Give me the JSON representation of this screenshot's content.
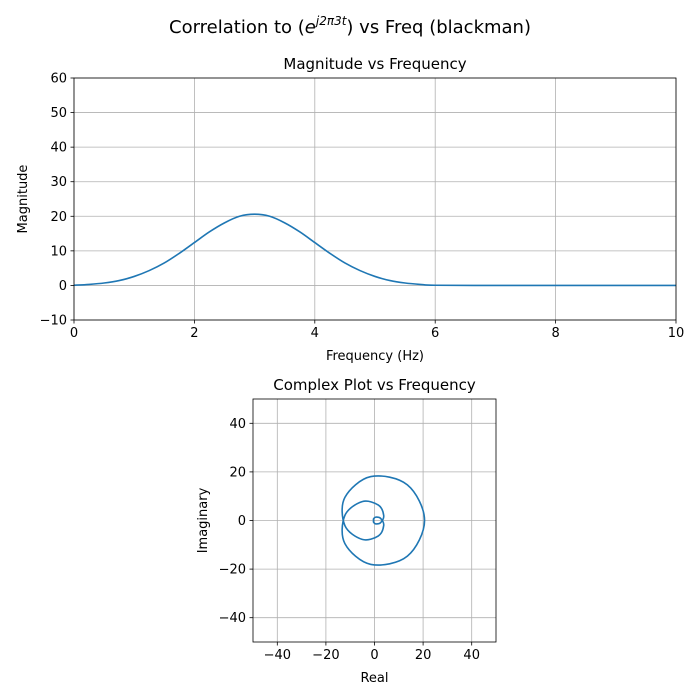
{
  "figure": {
    "suptitle_prefix": "Correlation to (",
    "suptitle_base": "e",
    "suptitle_sup": "j2π3t",
    "suptitle_suffix": ") vs Freq (blackman)"
  },
  "chart_data": [
    {
      "type": "line",
      "title": "Magnitude vs Frequency",
      "xlabel": "Frequency (Hz)",
      "ylabel": "Magnitude",
      "xlim": [
        0,
        10
      ],
      "ylim": [
        -10,
        60
      ],
      "xticks": [
        0,
        2,
        4,
        6,
        8,
        10
      ],
      "yticks": [
        -10,
        0,
        10,
        20,
        30,
        40,
        50,
        60
      ],
      "grid": true,
      "color": "#1f77b4",
      "x": [
        0,
        0.25,
        0.5,
        0.75,
        1,
        1.25,
        1.5,
        1.75,
        2,
        2.25,
        2.5,
        2.75,
        3,
        3.25,
        3.5,
        3.75,
        4,
        4.25,
        4.5,
        4.75,
        5,
        5.25,
        5.5,
        5.75,
        6,
        7,
        8,
        9,
        10
      ],
      "y": [
        0.05,
        0.3,
        0.7,
        1.4,
        2.6,
        4.3,
        6.5,
        9.3,
        12.4,
        15.5,
        18.1,
        20.0,
        20.6,
        20.0,
        18.1,
        15.5,
        12.4,
        9.3,
        6.5,
        4.3,
        2.6,
        1.4,
        0.7,
        0.3,
        0.05,
        0,
        0,
        0,
        0
      ]
    },
    {
      "type": "line",
      "title": "Complex Plot vs Frequency",
      "xlabel": "Real",
      "ylabel": "Imaginary",
      "xlim": [
        -50,
        50
      ],
      "ylim": [
        -50,
        50
      ],
      "xticks": [
        -40,
        -20,
        0,
        20,
        40
      ],
      "yticks": [
        -40,
        -20,
        0,
        20,
        40
      ],
      "grid": true,
      "color": "#1f77b4",
      "real": [
        -0.19,
        -0.41,
        -0.34,
        0.63,
        2.54,
        3.79,
        1.59,
        -5.08,
        -12.21,
        -12.18,
        -1.49,
        13.53,
        20.6,
        13.53,
        -1.49,
        -12.18,
        -12.21,
        -5.08,
        1.59,
        3.79,
        2.54,
        0.63,
        -0.34,
        -0.41,
        -0.19
      ],
      "imag": [
        0.1,
        -0.14,
        -0.78,
        -1.43,
        -0.86,
        2.07,
        6.34,
        7.77,
        2.02,
        -9.51,
        -18.07,
        -14.66,
        0,
        14.66,
        18.07,
        9.51,
        -2.02,
        -7.77,
        -6.34,
        -2.07,
        0.86,
        1.43,
        0.78,
        0.14,
        -0.1
      ]
    }
  ]
}
